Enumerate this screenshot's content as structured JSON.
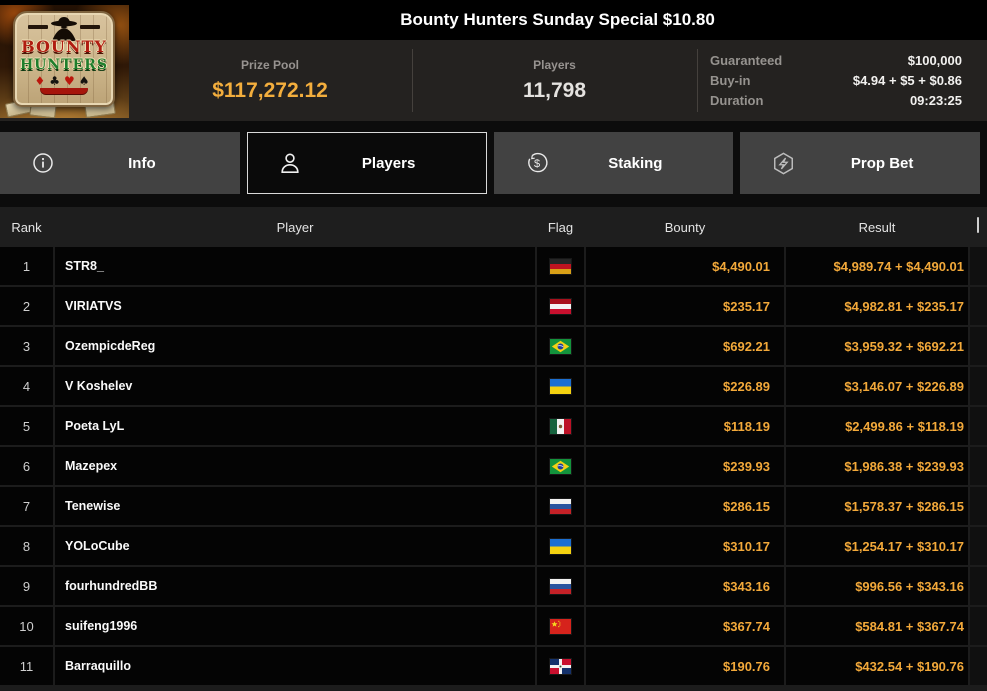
{
  "header": {
    "title": "Bounty Hunters Sunday Special $10.80",
    "logo": {
      "line1": "BOUNTY",
      "line2": "HUNTERS",
      "suits": [
        "♦",
        "♣",
        "♥",
        "♠"
      ]
    },
    "stats": [
      {
        "label": "Prize Pool",
        "value": "$117,272.12"
      },
      {
        "label": "Players",
        "value": "11,798"
      }
    ],
    "details": [
      {
        "label": "Guaranteed",
        "value": "$100,000"
      },
      {
        "label": "Buy-in",
        "value": "$4.94 + $5 + $0.86"
      },
      {
        "label": "Duration",
        "value": "09:23:25"
      }
    ]
  },
  "tabs": [
    {
      "label": "Info",
      "icon": "info-icon",
      "active": false
    },
    {
      "label": "Players",
      "icon": "user-icon",
      "active": true
    },
    {
      "label": "Staking",
      "icon": "dollar-circle-icon",
      "active": false
    },
    {
      "label": "Prop Bet",
      "icon": "hexagon-bolt-icon",
      "active": false
    }
  ],
  "table": {
    "columns": [
      "Rank",
      "Player",
      "Flag",
      "Bounty",
      "Result"
    ],
    "rows": [
      {
        "rank": "1",
        "player": "STR8_",
        "flag": "germany",
        "bounty": "$4,490.01",
        "result": "$4,989.74 + $4,490.01"
      },
      {
        "rank": "2",
        "player": "VIRIATVS",
        "flag": "austria",
        "bounty": "$235.17",
        "result": "$4,982.81 + $235.17"
      },
      {
        "rank": "3",
        "player": "OzempicdeReg",
        "flag": "brazil",
        "bounty": "$692.21",
        "result": "$3,959.32 + $692.21"
      },
      {
        "rank": "4",
        "player": "V Koshelev",
        "flag": "ukraine",
        "bounty": "$226.89",
        "result": "$3,146.07 + $226.89"
      },
      {
        "rank": "5",
        "player": "Poeta LyL",
        "flag": "mexico",
        "bounty": "$118.19",
        "result": "$2,499.86 + $118.19"
      },
      {
        "rank": "6",
        "player": "Mazepex",
        "flag": "brazil",
        "bounty": "$239.93",
        "result": "$1,986.38 + $239.93"
      },
      {
        "rank": "7",
        "player": "Tenewise",
        "flag": "russia",
        "bounty": "$286.15",
        "result": "$1,578.37 + $286.15"
      },
      {
        "rank": "8",
        "player": "YOLoCube",
        "flag": "ukraine",
        "bounty": "$310.17",
        "result": "$1,254.17 + $310.17"
      },
      {
        "rank": "9",
        "player": "fourhundredBB",
        "flag": "russia",
        "bounty": "$343.16",
        "result": "$996.56 + $343.16"
      },
      {
        "rank": "10",
        "player": "suifeng1996",
        "flag": "china",
        "bounty": "$367.74",
        "result": "$584.81 + $367.74"
      },
      {
        "rank": "11",
        "player": "Barraquillo",
        "flag": "dominican-republic",
        "bounty": "$190.76",
        "result": "$432.54 + $190.76"
      }
    ]
  },
  "colors": {
    "accent_gold": "#f3a93a",
    "tab_inactive_bg": "#424242",
    "tab_active_border": "#d9d9d9",
    "row_bg": "#040404",
    "infobar_bg": "#242220"
  }
}
